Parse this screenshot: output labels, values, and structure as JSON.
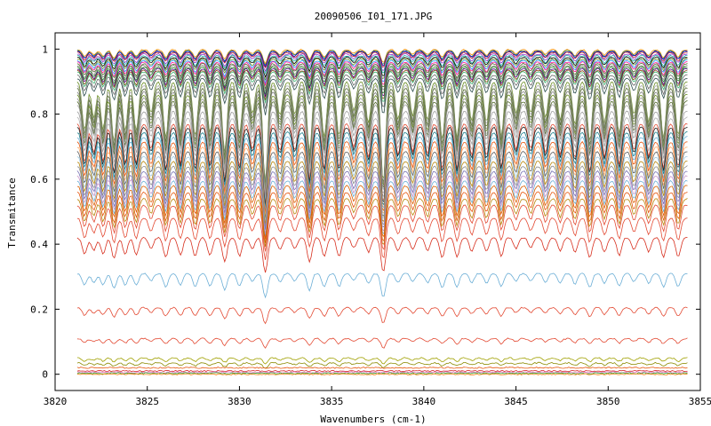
{
  "chart_data": {
    "type": "line",
    "title": "20090506_I01_171.JPG",
    "xlabel": "Wavenumbers (cm-1)",
    "ylabel": "Transmitance",
    "xlim": [
      3820,
      3855
    ],
    "ylim": [
      -0.05,
      1.05
    ],
    "x_ticks": [
      3820,
      3825,
      3830,
      3835,
      3840,
      3845,
      3850,
      3855
    ],
    "y_ticks": [
      0,
      0.2,
      0.4,
      0.6,
      0.8,
      1
    ],
    "y_tick_labels": [
      "0",
      "0.2",
      "0.4",
      "0.6",
      "0.8",
      "1"
    ],
    "x_range_data": [
      3821.2,
      3854.3
    ],
    "grid": false,
    "legend": "none",
    "absorption_lines_cm1": [
      3821.6,
      3822.1,
      3822.6,
      3823.2,
      3823.8,
      3824.4,
      3825.2,
      3826.0,
      3826.8,
      3827.6,
      3828.4,
      3829.2,
      3830.0,
      3830.7,
      3831.4,
      3832.2,
      3833.0,
      3833.8,
      3834.6,
      3835.4,
      3836.2,
      3837.0,
      3837.8,
      3838.6,
      3839.4,
      3840.2,
      3841.0,
      3841.8,
      3842.6,
      3843.4,
      3844.2,
      3845.0,
      3845.8,
      3846.6,
      3847.4,
      3848.2,
      3849.0,
      3849.8,
      3850.6,
      3851.4,
      3852.2,
      3853.0,
      3853.8
    ],
    "series": [
      {
        "baseline": 0.998,
        "color": "#ff8c00"
      },
      {
        "baseline": 0.995,
        "color": "#2e8b57"
      },
      {
        "baseline": 0.993,
        "color": "#0000cd"
      },
      {
        "baseline": 0.99,
        "color": "#b22222"
      },
      {
        "baseline": 0.985,
        "color": "#9932cc"
      },
      {
        "baseline": 0.98,
        "color": "#20b2aa"
      },
      {
        "baseline": 0.975,
        "color": "#000000"
      },
      {
        "baseline": 0.97,
        "color": "#6b8e23"
      },
      {
        "baseline": 0.965,
        "color": "#1e90ff"
      },
      {
        "baseline": 0.96,
        "color": "#ff1493"
      },
      {
        "baseline": 0.955,
        "color": "#556b2f"
      },
      {
        "baseline": 0.95,
        "color": "#808080"
      },
      {
        "baseline": 0.945,
        "color": "#228b22"
      },
      {
        "baseline": 0.94,
        "color": "#4b0082"
      },
      {
        "baseline": 0.935,
        "color": "#8b4513"
      },
      {
        "baseline": 0.93,
        "color": "#3cb371"
      },
      {
        "baseline": 0.92,
        "color": "#696969"
      },
      {
        "baseline": 0.91,
        "color": "#2f4f4f"
      },
      {
        "baseline": 0.9,
        "color": "#6b8e23"
      },
      {
        "baseline": 0.89,
        "color": "#a9a9a9"
      },
      {
        "baseline": 0.88,
        "color": "#556b2f"
      },
      {
        "baseline": 0.87,
        "color": "#808080"
      },
      {
        "baseline": 0.86,
        "color": "#6b8e23"
      },
      {
        "baseline": 0.85,
        "color": "#909090"
      },
      {
        "baseline": 0.84,
        "color": "#556b2f"
      },
      {
        "baseline": 0.83,
        "color": "#a0a0a0"
      },
      {
        "baseline": 0.81,
        "color": "#9e9e9e"
      },
      {
        "baseline": 0.79,
        "color": "#b0b0b0"
      },
      {
        "baseline": 0.77,
        "color": "#e34a33"
      },
      {
        "baseline": 0.76,
        "color": "#1f1f1f"
      },
      {
        "baseline": 0.745,
        "color": "#1a7f8c"
      },
      {
        "baseline": 0.73,
        "color": "#6baed6"
      },
      {
        "baseline": 0.715,
        "color": "#e6550d"
      },
      {
        "baseline": 0.7,
        "color": "#fdae6b"
      },
      {
        "baseline": 0.685,
        "color": "#5c5c5c"
      },
      {
        "baseline": 0.67,
        "color": "#9ecae1"
      },
      {
        "baseline": 0.655,
        "color": "#b8860b"
      },
      {
        "baseline": 0.64,
        "color": "#8c8c8c"
      },
      {
        "baseline": 0.625,
        "color": "#7570b3"
      },
      {
        "baseline": 0.61,
        "color": "#c994c7"
      },
      {
        "baseline": 0.595,
        "color": "#6baed6"
      },
      {
        "baseline": 0.58,
        "color": "#d95f02"
      },
      {
        "baseline": 0.56,
        "color": "#e6550d"
      },
      {
        "baseline": 0.54,
        "color": "#b8860b"
      },
      {
        "baseline": 0.52,
        "color": "#e34a33"
      },
      {
        "baseline": 0.48,
        "color": "#e34a33"
      },
      {
        "baseline": 0.42,
        "color": "#d7301f"
      },
      {
        "baseline": 0.31,
        "color": "#6baed6"
      },
      {
        "baseline": 0.205,
        "color": "#e34a33"
      },
      {
        "baseline": 0.11,
        "color": "#e34a33"
      },
      {
        "baseline": 0.05,
        "color": "#a0a000"
      },
      {
        "baseline": 0.035,
        "color": "#8b8b00"
      },
      {
        "baseline": 0.02,
        "color": "#e6550d"
      },
      {
        "baseline": 0.01,
        "color": "#d62728"
      },
      {
        "baseline": 0.006,
        "color": "#e377c2"
      },
      {
        "baseline": 0.003,
        "color": "#2ca02c"
      },
      {
        "baseline": 0.0,
        "color": "#ff7f0e"
      }
    ]
  }
}
